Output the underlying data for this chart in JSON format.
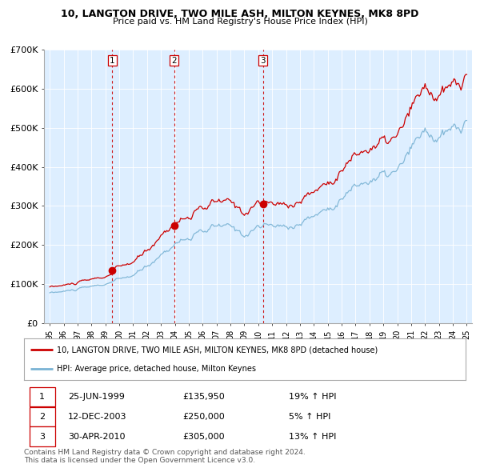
{
  "title": "10, LANGTON DRIVE, TWO MILE ASH, MILTON KEYNES, MK8 8PD",
  "subtitle": "Price paid vs. HM Land Registry's House Price Index (HPI)",
  "legend_line1": "10, LANGTON DRIVE, TWO MILE ASH, MILTON KEYNES, MK8 8PD (detached house)",
  "legend_line2": "HPI: Average price, detached house, Milton Keynes",
  "transactions": [
    {
      "num": 1,
      "date": "25-JUN-1999",
      "price": "£135,950",
      "hpi": "19% ↑ HPI",
      "year": 1999.5,
      "value": 135950
    },
    {
      "num": 2,
      "date": "12-DEC-2003",
      "price": "£250,000",
      "hpi": "5% ↑ HPI",
      "year": 2003.95,
      "value": 250000
    },
    {
      "num": 3,
      "date": "30-APR-2010",
      "price": "£305,000",
      "hpi": "13% ↑ HPI",
      "year": 2010.33,
      "value": 305000
    }
  ],
  "price_color": "#cc0000",
  "hpi_color": "#7ab3d4",
  "vline_color": "#cc0000",
  "bg_fill_color": "#ddeeff",
  "background_color": "#ffffff",
  "grid_color": "#cccccc",
  "yticks": [
    0,
    100000,
    200000,
    300000,
    400000,
    500000,
    600000,
    700000
  ],
  "ytick_labels": [
    "£0",
    "£100K",
    "£200K",
    "£300K",
    "£400K",
    "£500K",
    "£600K",
    "£700K"
  ],
  "xlim_start": 1994.6,
  "xlim_end": 2025.4,
  "ylim_min": 0,
  "ylim_max": 700000,
  "copyright_text": "Contains HM Land Registry data © Crown copyright and database right 2024.\nThis data is licensed under the Open Government Licence v3.0."
}
